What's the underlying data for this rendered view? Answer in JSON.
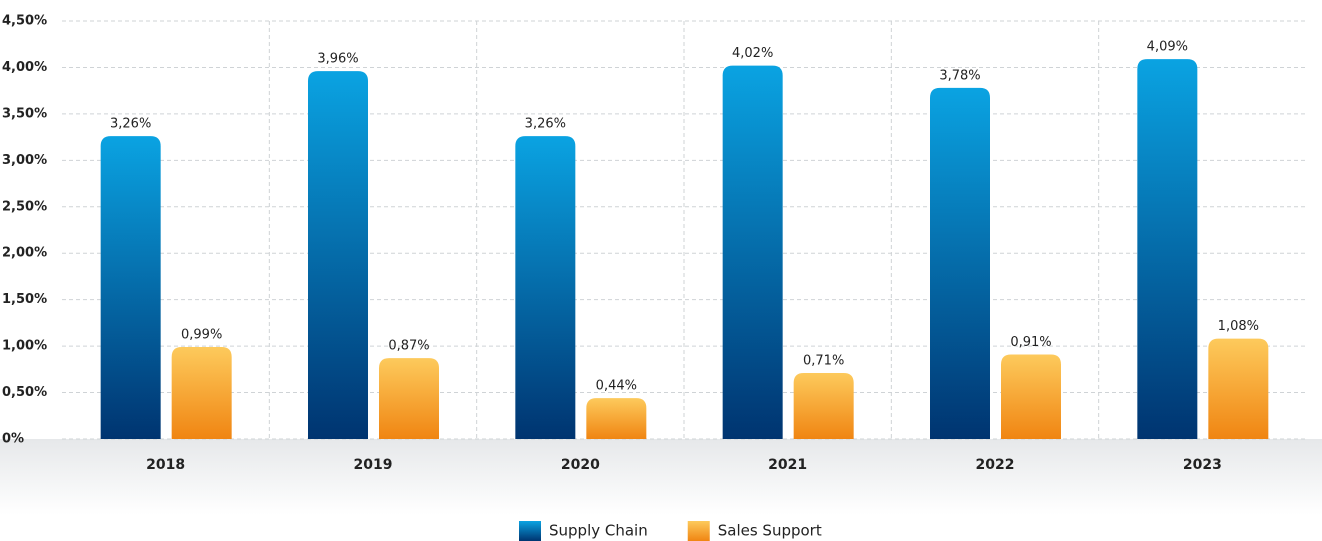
{
  "chart_data": {
    "type": "bar",
    "categories": [
      "2018",
      "2019",
      "2020",
      "2021",
      "2022",
      "2023"
    ],
    "series": [
      {
        "name": "Supply Chain",
        "color": "#0aa3e2",
        "values": [
          3.26,
          3.96,
          3.26,
          4.02,
          3.78,
          4.09
        ],
        "value_labels": [
          "3,26%",
          "3,96%",
          "3,26%",
          "4,02%",
          "3,78%",
          "4,09%"
        ]
      },
      {
        "name": "Sales Support",
        "color": "#fdca5c",
        "values": [
          0.99,
          0.87,
          0.44,
          0.71,
          0.91,
          1.08
        ],
        "value_labels": [
          "0,99%",
          "0,87%",
          "0,44%",
          "0,71%",
          "0,91%",
          "1,08%"
        ]
      }
    ],
    "ylim": [
      0,
      4.5
    ],
    "yticks": [
      {
        "value": 0,
        "label": "0%"
      },
      {
        "value": 0.5,
        "label": "0,50%"
      },
      {
        "value": 1,
        "label": "1,00%"
      },
      {
        "value": 1.5,
        "label": "1,50%"
      },
      {
        "value": 2,
        "label": "2,00%"
      },
      {
        "value": 2.5,
        "label": "2,50%"
      },
      {
        "value": 3,
        "label": "3,00%"
      },
      {
        "value": 3.5,
        "label": "3,50%"
      },
      {
        "value": 4,
        "label": "4,00%"
      },
      {
        "value": 4.5,
        "label": "4,50%"
      }
    ],
    "grid": true
  }
}
